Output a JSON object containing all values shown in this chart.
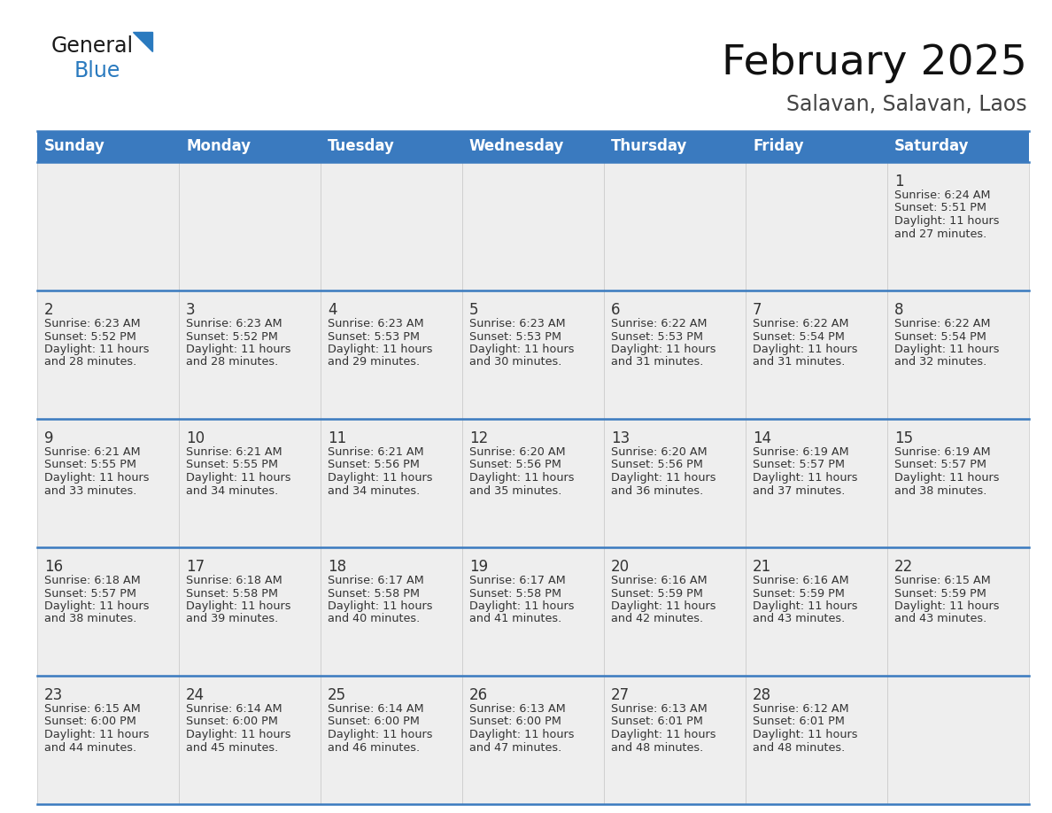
{
  "title": "February 2025",
  "subtitle": "Salavan, Salavan, Laos",
  "header_color": "#3a7abf",
  "header_text_color": "#ffffff",
  "cell_bg_color": "#eeeeee",
  "border_color": "#3a7abf",
  "text_color": "#333333",
  "day_headers": [
    "Sunday",
    "Monday",
    "Tuesday",
    "Wednesday",
    "Thursday",
    "Friday",
    "Saturday"
  ],
  "title_fontsize": 34,
  "subtitle_fontsize": 17,
  "header_fontsize": 12,
  "day_num_fontsize": 12,
  "cell_fontsize": 9.2,
  "logo_color_general": "#1a1a1a",
  "logo_color_blue": "#2a7abf",
  "logo_triangle_color": "#2a7abf",
  "calendar_data": [
    [
      null,
      null,
      null,
      null,
      null,
      null,
      {
        "day": 1,
        "sunrise": "6:24 AM",
        "sunset": "5:51 PM",
        "daylight": "11 hours and 27 minutes."
      }
    ],
    [
      {
        "day": 2,
        "sunrise": "6:23 AM",
        "sunset": "5:52 PM",
        "daylight": "11 hours and 28 minutes."
      },
      {
        "day": 3,
        "sunrise": "6:23 AM",
        "sunset": "5:52 PM",
        "daylight": "11 hours and 28 minutes."
      },
      {
        "day": 4,
        "sunrise": "6:23 AM",
        "sunset": "5:53 PM",
        "daylight": "11 hours and 29 minutes."
      },
      {
        "day": 5,
        "sunrise": "6:23 AM",
        "sunset": "5:53 PM",
        "daylight": "11 hours and 30 minutes."
      },
      {
        "day": 6,
        "sunrise": "6:22 AM",
        "sunset": "5:53 PM",
        "daylight": "11 hours and 31 minutes."
      },
      {
        "day": 7,
        "sunrise": "6:22 AM",
        "sunset": "5:54 PM",
        "daylight": "11 hours and 31 minutes."
      },
      {
        "day": 8,
        "sunrise": "6:22 AM",
        "sunset": "5:54 PM",
        "daylight": "11 hours and 32 minutes."
      }
    ],
    [
      {
        "day": 9,
        "sunrise": "6:21 AM",
        "sunset": "5:55 PM",
        "daylight": "11 hours and 33 minutes."
      },
      {
        "day": 10,
        "sunrise": "6:21 AM",
        "sunset": "5:55 PM",
        "daylight": "11 hours and 34 minutes."
      },
      {
        "day": 11,
        "sunrise": "6:21 AM",
        "sunset": "5:56 PM",
        "daylight": "11 hours and 34 minutes."
      },
      {
        "day": 12,
        "sunrise": "6:20 AM",
        "sunset": "5:56 PM",
        "daylight": "11 hours and 35 minutes."
      },
      {
        "day": 13,
        "sunrise": "6:20 AM",
        "sunset": "5:56 PM",
        "daylight": "11 hours and 36 minutes."
      },
      {
        "day": 14,
        "sunrise": "6:19 AM",
        "sunset": "5:57 PM",
        "daylight": "11 hours and 37 minutes."
      },
      {
        "day": 15,
        "sunrise": "6:19 AM",
        "sunset": "5:57 PM",
        "daylight": "11 hours and 38 minutes."
      }
    ],
    [
      {
        "day": 16,
        "sunrise": "6:18 AM",
        "sunset": "5:57 PM",
        "daylight": "11 hours and 38 minutes."
      },
      {
        "day": 17,
        "sunrise": "6:18 AM",
        "sunset": "5:58 PM",
        "daylight": "11 hours and 39 minutes."
      },
      {
        "day": 18,
        "sunrise": "6:17 AM",
        "sunset": "5:58 PM",
        "daylight": "11 hours and 40 minutes."
      },
      {
        "day": 19,
        "sunrise": "6:17 AM",
        "sunset": "5:58 PM",
        "daylight": "11 hours and 41 minutes."
      },
      {
        "day": 20,
        "sunrise": "6:16 AM",
        "sunset": "5:59 PM",
        "daylight": "11 hours and 42 minutes."
      },
      {
        "day": 21,
        "sunrise": "6:16 AM",
        "sunset": "5:59 PM",
        "daylight": "11 hours and 43 minutes."
      },
      {
        "day": 22,
        "sunrise": "6:15 AM",
        "sunset": "5:59 PM",
        "daylight": "11 hours and 43 minutes."
      }
    ],
    [
      {
        "day": 23,
        "sunrise": "6:15 AM",
        "sunset": "6:00 PM",
        "daylight": "11 hours and 44 minutes."
      },
      {
        "day": 24,
        "sunrise": "6:14 AM",
        "sunset": "6:00 PM",
        "daylight": "11 hours and 45 minutes."
      },
      {
        "day": 25,
        "sunrise": "6:14 AM",
        "sunset": "6:00 PM",
        "daylight": "11 hours and 46 minutes."
      },
      {
        "day": 26,
        "sunrise": "6:13 AM",
        "sunset": "6:00 PM",
        "daylight": "11 hours and 47 minutes."
      },
      {
        "day": 27,
        "sunrise": "6:13 AM",
        "sunset": "6:01 PM",
        "daylight": "11 hours and 48 minutes."
      },
      {
        "day": 28,
        "sunrise": "6:12 AM",
        "sunset": "6:01 PM",
        "daylight": "11 hours and 48 minutes."
      },
      null
    ]
  ]
}
